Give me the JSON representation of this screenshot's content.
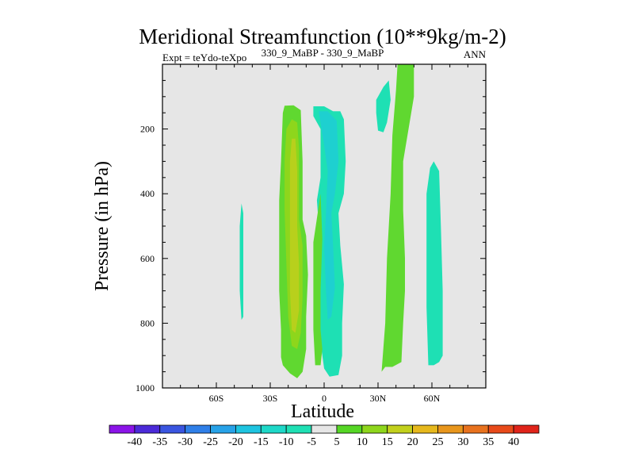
{
  "chart_data": {
    "type": "filled-contour",
    "title": "Meridional Streamfunction (10**9kg/m-2)",
    "subtitle_left": "Expt = teYdo-teXpo",
    "subtitle_center": "330_9_MaBP - 330_9_MaBP",
    "subtitle_right": "ANN",
    "xlabel": "Latitude",
    "ylabel": "Pressure (in hPa)",
    "xlim": [
      -90,
      90
    ],
    "ylim": [
      1000,
      0
    ],
    "x_ticks": [
      {
        "value": -60,
        "label": "60S"
      },
      {
        "value": -30,
        "label": "30S"
      },
      {
        "value": 0,
        "label": "0"
      },
      {
        "value": 30,
        "label": "30N"
      },
      {
        "value": 60,
        "label": "60N"
      }
    ],
    "y_ticks": [
      {
        "value": 200,
        "label": "200"
      },
      {
        "value": 400,
        "label": "400"
      },
      {
        "value": 600,
        "label": "600"
      },
      {
        "value": 800,
        "label": "800"
      },
      {
        "value": 1000,
        "label": "1000"
      }
    ],
    "background_color": "#e6e6e6",
    "colorbar": {
      "labels": [
        "-40",
        "-35",
        "-30",
        "-25",
        "-20",
        "-15",
        "-10",
        "-5",
        "5",
        "10",
        "15",
        "20",
        "25",
        "30",
        "35",
        "40"
      ],
      "colors": [
        "#8b14e8",
        "#4b2ad8",
        "#3a55e0",
        "#2f7fe8",
        "#27a2e8",
        "#1ec4e0",
        "#1ed8c8",
        "#1fe0b4",
        "#e6e6e6",
        "#55d625",
        "#8ed61c",
        "#c2d01c",
        "#e6b81c",
        "#e8961c",
        "#e8721e",
        "#e84a1a",
        "#e0241a"
      ]
    },
    "regions": [
      {
        "name": "ring-lat-15-outer",
        "level": "5 to 10",
        "color": "#60d830",
        "points": [
          [
            -24,
            905
          ],
          [
            -24,
            820
          ],
          [
            -25,
            700
          ],
          [
            -25,
            570
          ],
          [
            -25,
            420
          ],
          [
            -24,
            300
          ],
          [
            -23,
            150
          ],
          [
            -22,
            128
          ],
          [
            -17,
            127
          ],
          [
            -13,
            142
          ],
          [
            -12,
            300
          ],
          [
            -12,
            480
          ],
          [
            -10,
            530
          ],
          [
            -9,
            650
          ],
          [
            -10,
            780
          ],
          [
            -10,
            880
          ],
          [
            -12,
            950
          ],
          [
            -15,
            970
          ],
          [
            -19,
            955
          ],
          [
            -23,
            930
          ]
        ]
      },
      {
        "name": "core-lat-15-10",
        "level": "10 to 15",
        "color": "#8ed61c",
        "points": [
          [
            -22,
            300
          ],
          [
            -21,
            200
          ],
          [
            -18,
            170
          ],
          [
            -15,
            180
          ],
          [
            -14,
            260
          ],
          [
            -14,
            480
          ],
          [
            -12,
            560
          ],
          [
            -12,
            720
          ],
          [
            -13,
            830
          ],
          [
            -15,
            880
          ],
          [
            -18,
            870
          ],
          [
            -20,
            780
          ],
          [
            -21,
            620
          ],
          [
            -22,
            450
          ]
        ]
      },
      {
        "name": "core-lat-15-15",
        "level": "15 to 20",
        "color": "#b8d01c",
        "points": [
          [
            -19,
            300
          ],
          [
            -18,
            230
          ],
          [
            -16,
            230
          ],
          [
            -15,
            330
          ],
          [
            -15,
            500
          ],
          [
            -14,
            620
          ],
          [
            -14,
            760
          ],
          [
            -16,
            830
          ],
          [
            -18,
            820
          ],
          [
            -19,
            700
          ],
          [
            -19,
            520
          ]
        ]
      },
      {
        "name": "ring-lat-5-outer",
        "level": "-10 to -5",
        "color": "#1ee0b4",
        "points": [
          [
            -6,
            130
          ],
          [
            0,
            130
          ],
          [
            5,
            145
          ],
          [
            9,
            145
          ],
          [
            11,
            170
          ],
          [
            12,
            300
          ],
          [
            11,
            400
          ],
          [
            8,
            460
          ],
          [
            9,
            560
          ],
          [
            11,
            680
          ],
          [
            10,
            800
          ],
          [
            10,
            900
          ],
          [
            8,
            960
          ],
          [
            3,
            965
          ],
          [
            0,
            940
          ],
          [
            -2,
            860
          ],
          [
            -3,
            720
          ],
          [
            -3,
            500
          ],
          [
            -4,
            420
          ],
          [
            -2,
            350
          ],
          [
            -2,
            200
          ],
          [
            -6,
            160
          ]
        ]
      },
      {
        "name": "inner-lat-5-10",
        "level": "-15 to -10",
        "color": "#1ed0d0",
        "points": [
          [
            -3,
            145
          ],
          [
            2,
            145
          ],
          [
            7,
            175
          ],
          [
            8,
            300
          ],
          [
            6,
            400
          ],
          [
            4,
            460
          ],
          [
            5,
            560
          ],
          [
            6,
            690
          ],
          [
            4,
            780
          ],
          [
            2,
            790
          ],
          [
            1,
            700
          ],
          [
            0,
            560
          ],
          [
            1,
            460
          ],
          [
            2,
            330
          ],
          [
            0,
            250
          ]
        ]
      },
      {
        "name": "green-south-of-eq",
        "level": "5 to 10",
        "color": "#60d830",
        "points": [
          [
            -2,
            400
          ],
          [
            -1,
            540
          ],
          [
            -2,
            700
          ],
          [
            -2,
            820
          ],
          [
            -1,
            880
          ],
          [
            -2,
            930
          ],
          [
            -5,
            930
          ],
          [
            -6,
            820
          ],
          [
            -6,
            680
          ],
          [
            -6,
            550
          ]
        ]
      },
      {
        "name": "ring-lat-45-outer",
        "level": "5 to 10",
        "color": "#60d830",
        "points": [
          [
            32,
            950
          ],
          [
            34,
            800
          ],
          [
            35,
            600
          ],
          [
            37,
            400
          ],
          [
            38,
            220
          ],
          [
            40,
            80
          ],
          [
            41,
            -10
          ],
          [
            50,
            -10
          ],
          [
            50,
            100
          ],
          [
            47,
            200
          ],
          [
            44,
            300
          ],
          [
            44,
            450
          ],
          [
            45,
            600
          ],
          [
            45,
            700
          ],
          [
            44,
            800
          ],
          [
            43,
            920
          ],
          [
            38,
            935
          ],
          [
            34,
            935
          ]
        ]
      },
      {
        "name": "blob-lat-30-top",
        "level": "-10 to -5",
        "color": "#1ee0b4",
        "points": [
          [
            29,
            150
          ],
          [
            29,
            110
          ],
          [
            33,
            70
          ],
          [
            36,
            50
          ],
          [
            37,
            110
          ],
          [
            35,
            180
          ],
          [
            33,
            210
          ],
          [
            30,
            205
          ]
        ]
      },
      {
        "name": "column-lat-60",
        "level": "-10 to -5",
        "color": "#1ee0b4",
        "points": [
          [
            58,
            930
          ],
          [
            57,
            750
          ],
          [
            57,
            500
          ],
          [
            57,
            400
          ],
          [
            59,
            320
          ],
          [
            61,
            300
          ],
          [
            64,
            330
          ],
          [
            65,
            500
          ],
          [
            66,
            700
          ],
          [
            66,
            900
          ],
          [
            64,
            920
          ],
          [
            61,
            930
          ]
        ]
      },
      {
        "name": "column-lat-45",
        "level": "-10 to -5",
        "color": "#1ee0b4",
        "points": [
          [
            -46,
            790
          ],
          [
            -47,
            700
          ],
          [
            -47,
            600
          ],
          [
            -47,
            500
          ],
          [
            -46,
            430
          ],
          [
            -45,
            460
          ],
          [
            -45,
            600
          ],
          [
            -45,
            700
          ],
          [
            -45,
            780
          ]
        ]
      }
    ]
  }
}
